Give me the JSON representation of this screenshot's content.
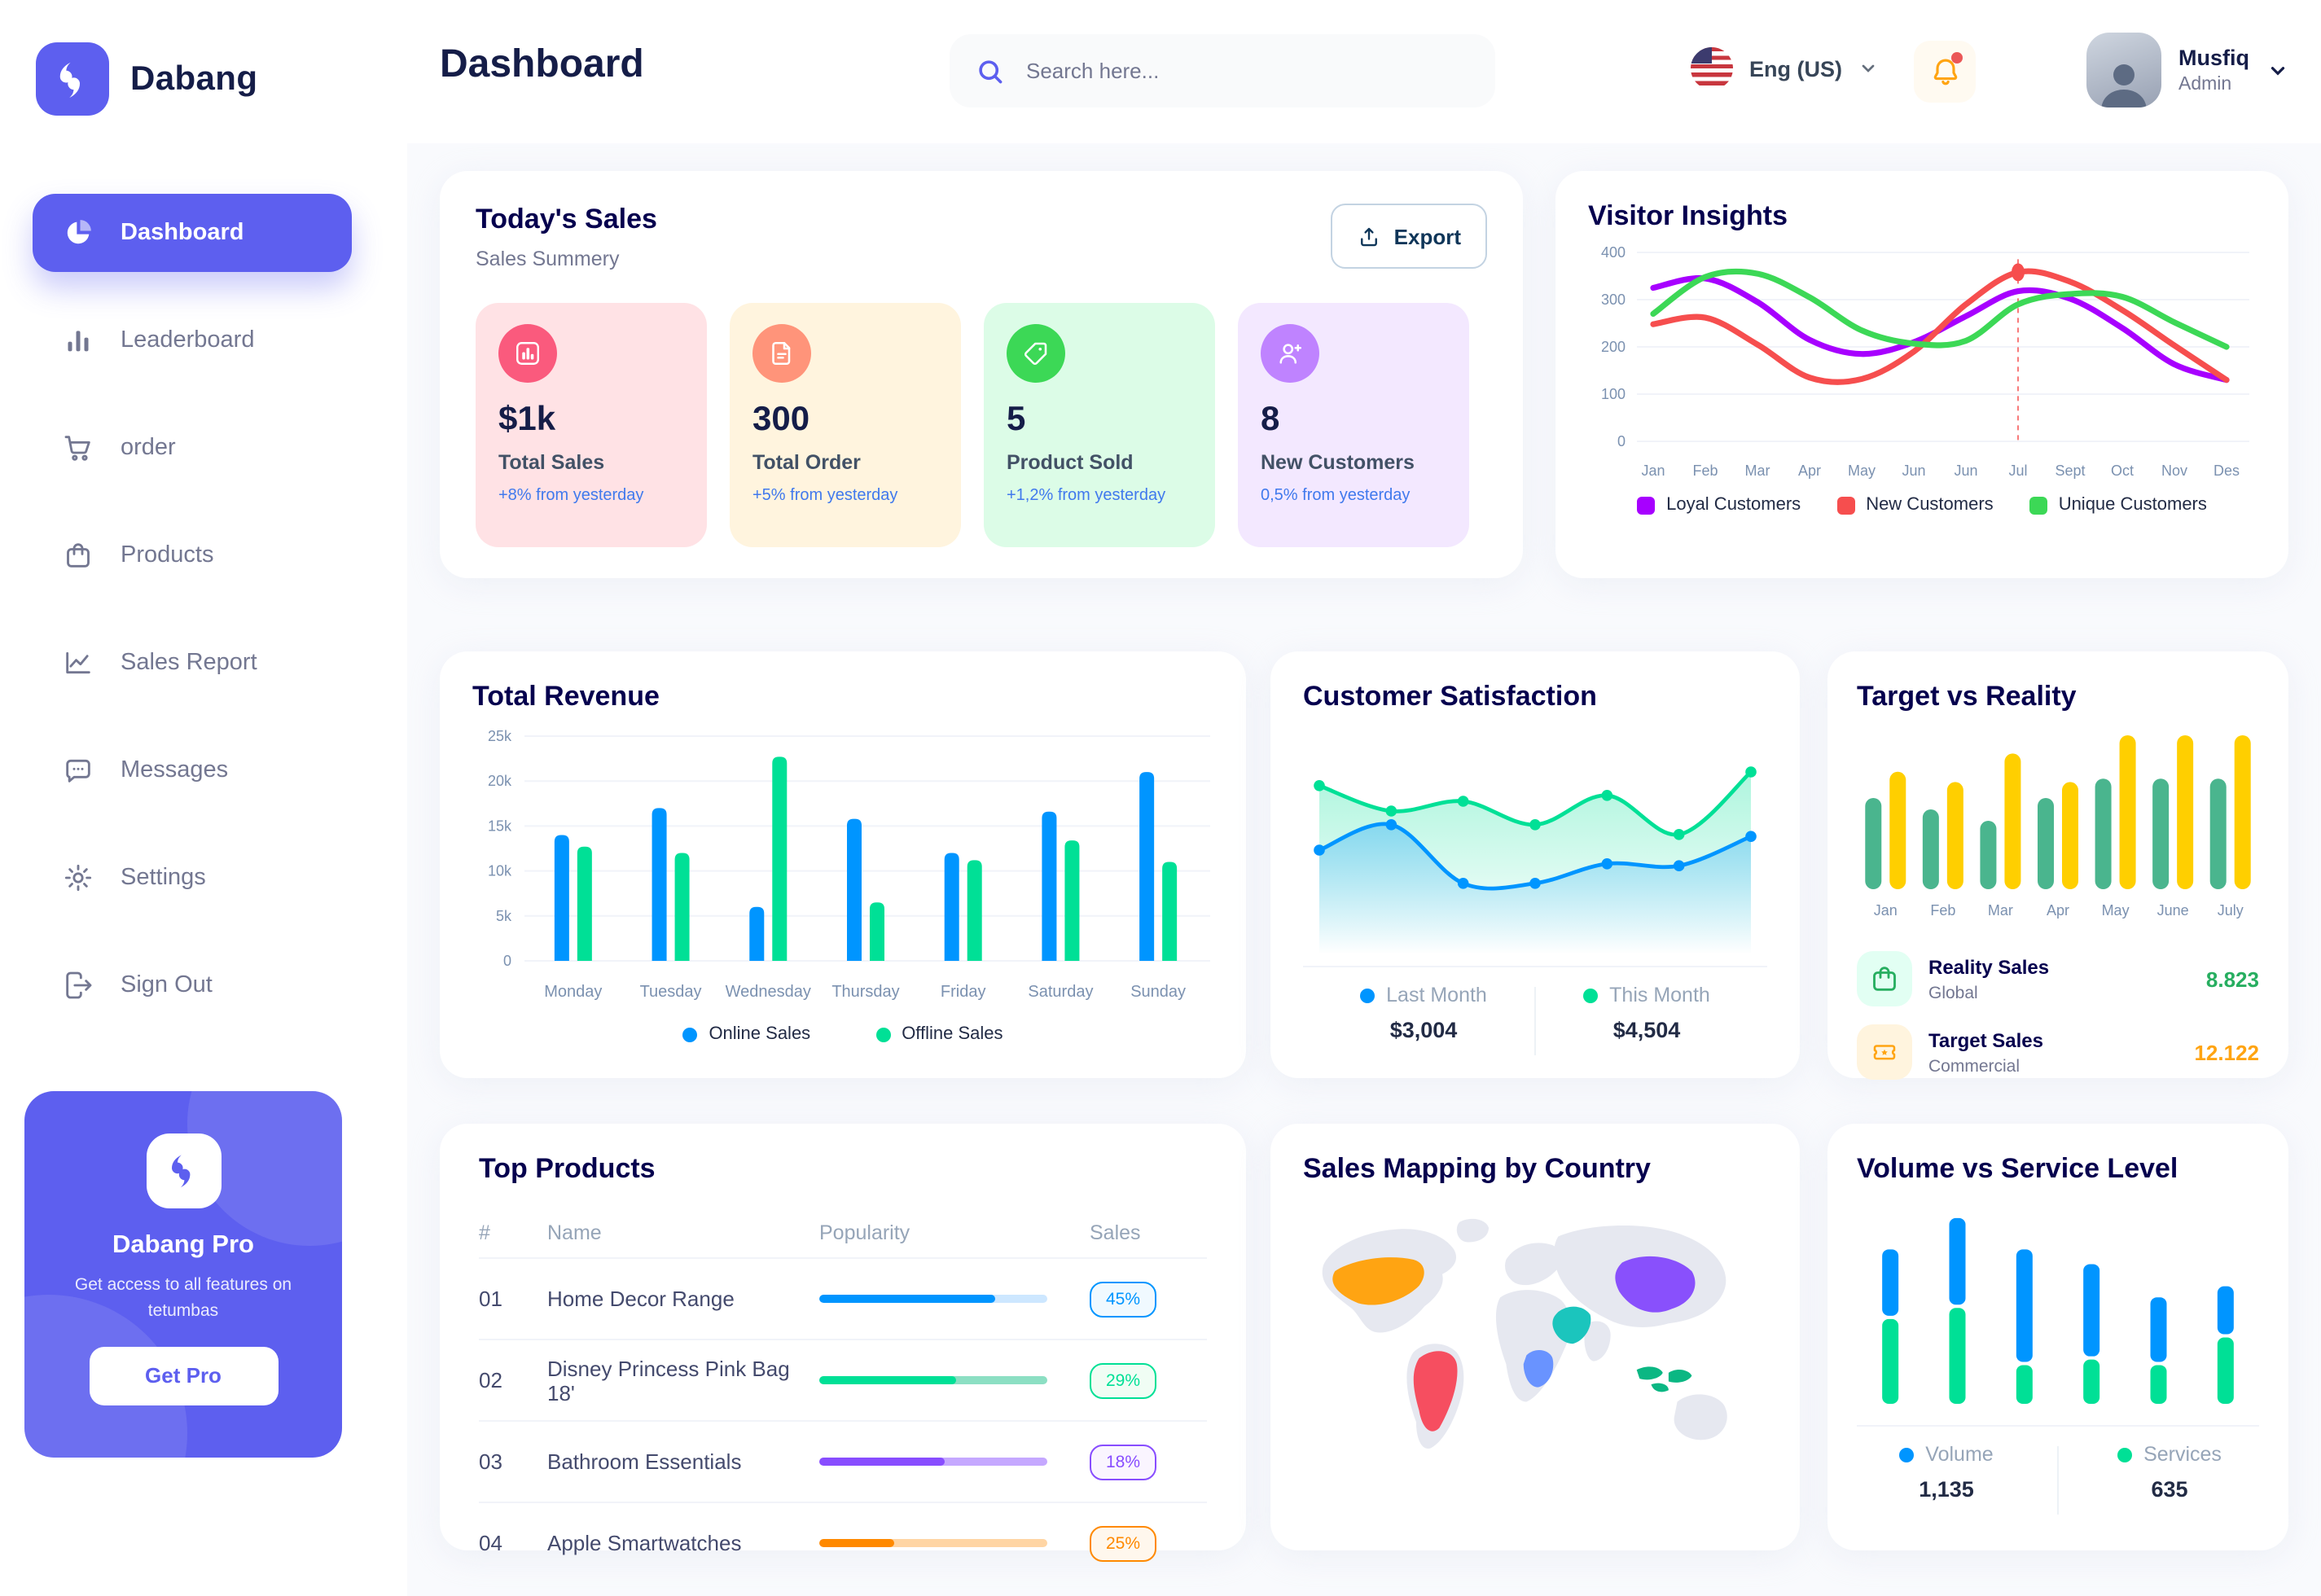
{
  "sidebar": {
    "logo_text": "Dabang",
    "items": [
      {
        "label": "Dashboard",
        "icon": "pie-chart-icon",
        "active": true
      },
      {
        "label": "Leaderboard",
        "icon": "bar-chart-icon",
        "active": false
      },
      {
        "label": "order",
        "icon": "cart-icon",
        "active": false
      },
      {
        "label": "Products",
        "icon": "bag-icon",
        "active": false
      },
      {
        "label": "Sales Report",
        "icon": "line-chart-icon",
        "active": false
      },
      {
        "label": "Messages",
        "icon": "message-icon",
        "active": false
      },
      {
        "label": "Settings",
        "icon": "gear-icon",
        "active": false
      },
      {
        "label": "Sign Out",
        "icon": "sign-out-icon",
        "active": false
      }
    ],
    "pro_card": {
      "title": "Dabang Pro",
      "subtitle": "Get access to all features on tetumbas",
      "button_label": "Get Pro"
    }
  },
  "header": {
    "title": "Dashboard",
    "search_placeholder": "Search here...",
    "language": "Eng (US)",
    "user_name": "Musfiq",
    "user_role": "Admin"
  },
  "todays_sales": {
    "title": "Today's Sales",
    "subtitle": "Sales Summery",
    "export_label": "Export",
    "cards": [
      {
        "value": "$1k",
        "label": "Total Sales",
        "trend": "+8% from yesterday",
        "bg": "#FFE2E5",
        "icon_bg": "#FA5A7D",
        "icon": "stats-icon"
      },
      {
        "value": "300",
        "label": "Total Order",
        "trend": "+5% from yesterday",
        "bg": "#FFF4DE",
        "icon_bg": "#FF947A",
        "icon": "file-icon"
      },
      {
        "value": "5",
        "label": "Product Sold",
        "trend": "+1,2% from yesterday",
        "bg": "#DCFCE7",
        "icon_bg": "#3CD856",
        "icon": "tag-icon"
      },
      {
        "value": "8",
        "label": "New Customers",
        "trend": "0,5% from yesterday",
        "bg": "#F3E8FF",
        "icon_bg": "#BF83FF",
        "icon": "user-plus-icon"
      }
    ]
  },
  "chart_data": [
    {
      "id": "visitor_insights",
      "type": "line",
      "title": "Visitor Insights",
      "x_labels": [
        "Jan",
        "Feb",
        "Mar",
        "Apr",
        "May",
        "Jun",
        "Jun",
        "Jul",
        "Sept",
        "Oct",
        "Nov",
        "Des"
      ],
      "y_ticks": [
        0,
        100,
        200,
        300,
        400
      ],
      "ylim": [
        0,
        400
      ],
      "grid": true,
      "legend_position": "bottom",
      "series": [
        {
          "name": "Loyal Customers",
          "color": "#A700FF",
          "values": [
            325,
            345,
            295,
            215,
            185,
            210,
            265,
            318,
            302,
            240,
            163,
            130
          ]
        },
        {
          "name": "New Customers",
          "color": "#F64E4E",
          "values": [
            248,
            262,
            205,
            135,
            132,
            190,
            290,
            358,
            338,
            278,
            203,
            130
          ]
        },
        {
          "name": "Unique Customers",
          "color": "#3CD856",
          "values": [
            270,
            348,
            355,
            305,
            235,
            207,
            213,
            290,
            312,
            306,
            252,
            200
          ]
        }
      ],
      "marker": {
        "x_index": 7,
        "series": "New Customers",
        "value": 358
      }
    },
    {
      "id": "total_revenue",
      "type": "bar",
      "title": "Total Revenue",
      "categories": [
        "Monday",
        "Tuesday",
        "Wednesday",
        "Thursday",
        "Friday",
        "Saturday",
        "Sunday"
      ],
      "y_tick_labels": [
        "0",
        "5k",
        "10k",
        "15k",
        "20k",
        "25k"
      ],
      "ylim": [
        0,
        25
      ],
      "grid": true,
      "legend_position": "bottom",
      "series": [
        {
          "name": "Online Sales",
          "color": "#0095FF",
          "values": [
            14,
            17,
            6,
            15.8,
            12,
            16.6,
            21
          ]
        },
        {
          "name": "Offline Sales",
          "color": "#00E096",
          "values": [
            12.7,
            12,
            22.7,
            6.5,
            11.2,
            13.4,
            11
          ]
        }
      ]
    },
    {
      "id": "customer_satisfaction",
      "type": "area",
      "title": "Customer Satisfaction",
      "ylim": [
        0,
        100
      ],
      "grid": false,
      "legend_position": "bottom",
      "series": [
        {
          "name": "Last Month",
          "color": "#0095FF",
          "total": "$3,004",
          "values": [
            45,
            58,
            28,
            28,
            38,
            37,
            52
          ]
        },
        {
          "name": "This Month",
          "color": "#00E096",
          "total": "$4,504",
          "values": [
            78,
            65,
            70,
            58,
            73,
            53,
            85
          ]
        }
      ]
    },
    {
      "id": "target_vs_reality",
      "type": "bar",
      "title": "Target vs Reality",
      "categories": [
        "Jan",
        "Feb",
        "Mar",
        "Apr",
        "May",
        "June",
        "July"
      ],
      "ylim": [
        0,
        14
      ],
      "grid": false,
      "legend_position": "bottom",
      "series": [
        {
          "name": "Reality Sales",
          "color": "#4AB58E",
          "values": [
            8,
            7,
            6,
            8,
            9.7,
            9.7,
            9.7
          ]
        },
        {
          "name": "Target Sales",
          "color": "#FFCF00",
          "values": [
            10.3,
            9.4,
            11.9,
            9.4,
            13.5,
            13.5,
            13.5
          ]
        }
      ],
      "legend": [
        {
          "name": "Reality Sales",
          "desc": "Global",
          "value": "8.823",
          "value_color": "#27AE60",
          "icon": "bag-icon",
          "icon_bg": "#E2FFF3",
          "icon_color": "#27AE60"
        },
        {
          "name": "Target Sales",
          "desc": "Commercial",
          "value": "12.122",
          "value_color": "#FFA412",
          "icon": "ticket-icon",
          "icon_bg": "#FFF4DE",
          "icon_color": "#FFA412"
        }
      ]
    },
    {
      "id": "volume_vs_service",
      "type": "stacked-bar",
      "title": "Volume vs Service Level",
      "grid": false,
      "legend_position": "bottom",
      "series": [
        {
          "name": "Volume",
          "color": "#0095FF",
          "total": "1,135",
          "values": [
            3.6,
            4.7,
            6.1,
            5.0,
            3.5,
            2.6
          ]
        },
        {
          "name": "Services",
          "color": "#00E096",
          "total": "635",
          "values": [
            4.6,
            5.2,
            2.1,
            2.4,
            2.1,
            3.6
          ]
        }
      ]
    }
  ],
  "top_products": {
    "title": "Top Products",
    "columns": [
      "#",
      "Name",
      "Popularity",
      "Sales"
    ],
    "rows": [
      {
        "num": "01",
        "name": "Home Decor Range",
        "progress": 77,
        "color": "#0095FF",
        "track": "#CDE7FF",
        "badge_bg": "#F0F9FF",
        "sales": "45%"
      },
      {
        "num": "02",
        "name": "Disney Princess Pink Bag 18'",
        "progress": 60,
        "color": "#00E096",
        "track": "#8CDFC3",
        "badge_bg": "#F0FDF4",
        "sales": "29%"
      },
      {
        "num": "03",
        "name": "Bathroom Essentials",
        "progress": 55,
        "color": "#884DFF",
        "track": "#C5A8FF",
        "badge_bg": "#FAF5FF",
        "sales": "18%"
      },
      {
        "num": "04",
        "name": "Apple Smartwatches",
        "progress": 33,
        "color": "#FF8900",
        "track": "#FFD5A4",
        "badge_bg": "#FFF7ED",
        "sales": "25%"
      }
    ]
  },
  "sales_mapping": {
    "title": "Sales Mapping by Country",
    "countries": [
      {
        "key": "usa",
        "name": "United States",
        "color": "#FFA412"
      },
      {
        "key": "brazil",
        "name": "Brazil",
        "color": "#F64E60"
      },
      {
        "key": "china",
        "name": "China",
        "color": "#8950FC"
      },
      {
        "key": "saudi",
        "name": "Saudi Arabia",
        "color": "#1BC5BD"
      },
      {
        "key": "congo",
        "name": "DR Congo",
        "color": "#6993FF"
      },
      {
        "key": "indonesia",
        "name": "Indonesia",
        "color": "#0BB783"
      }
    ],
    "land_color": "#E6E8F0"
  },
  "theme": {
    "accent": "#5D5FEF",
    "title_dark": "#151D48",
    "card_title": "#05004E",
    "muted": "#737791",
    "axis": "#7B91B0",
    "trend_blue": "#4079ED"
  }
}
